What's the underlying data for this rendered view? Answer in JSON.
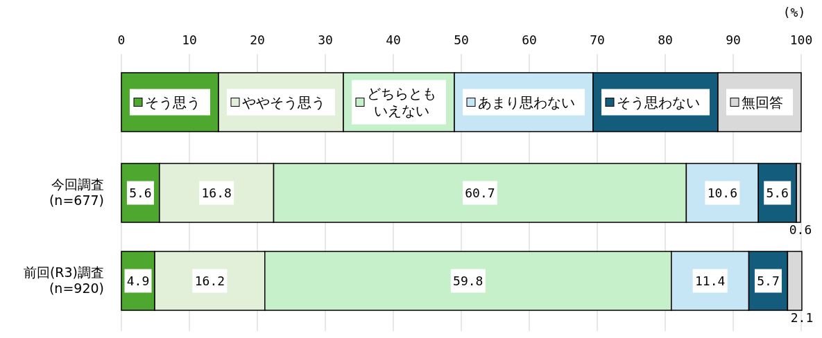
{
  "chart_data": {
    "type": "bar",
    "orientation": "horizontal",
    "stacked": true,
    "xlabel": "(%)",
    "categories": [
      "今回調査\n(n=677)",
      "前回(R3)調査\n(n=920)"
    ],
    "series": [
      {
        "name": "そう思う",
        "color": "#4ea72e",
        "values": [
          5.6,
          4.9
        ]
      },
      {
        "name": "ややそう思う",
        "color": "#e2f0d9",
        "values": [
          16.8,
          16.2
        ]
      },
      {
        "name": "どちらともいえない",
        "color": "#c5f0c9",
        "values": [
          60.7,
          59.8
        ]
      },
      {
        "name": "あまり思わない",
        "color": "#c6e6f5",
        "values": [
          10.6,
          11.4
        ]
      },
      {
        "name": "そう思わない",
        "color": "#145c7c",
        "values": [
          5.6,
          5.7
        ]
      },
      {
        "name": "無回答",
        "color": "#d9d9d9",
        "values": [
          0.6,
          2.1
        ]
      }
    ],
    "xlim": [
      0,
      100
    ],
    "xticks": [
      0,
      10,
      20,
      30,
      40,
      50,
      60,
      70,
      80,
      90,
      100
    ],
    "grid": "x",
    "legend": "top",
    "data_labels": true
  }
}
